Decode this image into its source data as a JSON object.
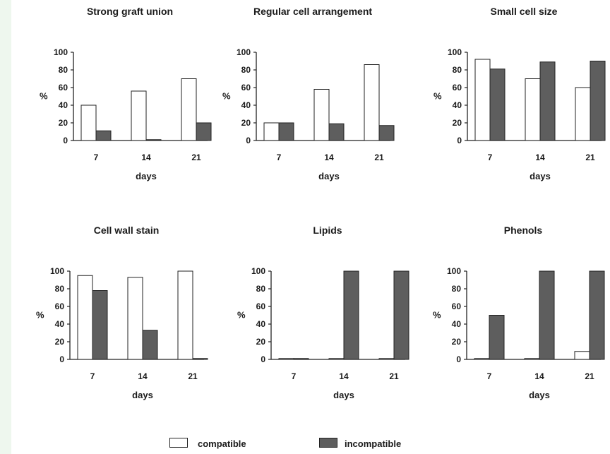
{
  "colors": {
    "compatible": "#ffffff",
    "incompatible": "#5e5e5e",
    "stroke": "#222222"
  },
  "legend": {
    "compatible": "compatible",
    "incompatible": "incompatible"
  },
  "chart_data": [
    {
      "type": "bar",
      "title": "Strong graft union",
      "categories": [
        "7",
        "14",
        "21"
      ],
      "series": [
        {
          "name": "compatible",
          "values": [
            40,
            56,
            70
          ]
        },
        {
          "name": "incompatible",
          "values": [
            11,
            1,
            20
          ]
        }
      ],
      "xlabel": "days",
      "ylabel": "%",
      "ylim": [
        0,
        100
      ],
      "yticks": [
        0,
        20,
        40,
        60,
        80,
        100
      ],
      "grid": false,
      "legend": "bottom"
    },
    {
      "type": "bar",
      "title": "Regular cell arrangement",
      "categories": [
        "7",
        "14",
        "21"
      ],
      "series": [
        {
          "name": "compatible",
          "values": [
            20,
            58,
            86
          ]
        },
        {
          "name": "incompatible",
          "values": [
            20,
            19,
            17
          ]
        }
      ],
      "xlabel": "days",
      "ylabel": "%",
      "ylim": [
        0,
        100
      ],
      "yticks": [
        0,
        20,
        40,
        60,
        80,
        100
      ],
      "grid": false,
      "legend": "bottom"
    },
    {
      "type": "bar",
      "title": "Small cell size",
      "categories": [
        "7",
        "14",
        "21"
      ],
      "series": [
        {
          "name": "compatible",
          "values": [
            92,
            70,
            60
          ]
        },
        {
          "name": "incompatible",
          "values": [
            81,
            89,
            90
          ]
        }
      ],
      "xlabel": "days",
      "ylabel": "%",
      "ylim": [
        0,
        100
      ],
      "yticks": [
        0,
        20,
        40,
        60,
        80,
        100
      ],
      "grid": false,
      "legend": "bottom"
    },
    {
      "type": "bar",
      "title": "Cell wall stain",
      "categories": [
        "7",
        "14",
        "21"
      ],
      "series": [
        {
          "name": "compatible",
          "values": [
            95,
            93,
            100
          ]
        },
        {
          "name": "incompatible",
          "values": [
            78,
            33,
            1
          ]
        }
      ],
      "xlabel": "days",
      "ylabel": "%",
      "ylim": [
        0,
        100
      ],
      "yticks": [
        0,
        20,
        40,
        60,
        80,
        100
      ],
      "grid": false,
      "legend": "bottom"
    },
    {
      "type": "bar",
      "title": "Lipids",
      "categories": [
        "7",
        "14",
        "21"
      ],
      "series": [
        {
          "name": "compatible",
          "values": [
            1,
            1,
            1
          ]
        },
        {
          "name": "incompatible",
          "values": [
            1,
            100,
            100
          ]
        }
      ],
      "xlabel": "days",
      "ylabel": "%",
      "ylim": [
        0,
        100
      ],
      "yticks": [
        0,
        20,
        40,
        60,
        80,
        100
      ],
      "grid": false,
      "legend": "bottom"
    },
    {
      "type": "bar",
      "title": "Phenols",
      "categories": [
        "7",
        "14",
        "21"
      ],
      "series": [
        {
          "name": "compatible",
          "values": [
            1,
            1,
            9
          ]
        },
        {
          "name": "incompatible",
          "values": [
            50,
            100,
            100
          ]
        }
      ],
      "xlabel": "days",
      "ylabel": "%",
      "ylim": [
        0,
        100
      ],
      "yticks": [
        0,
        20,
        40,
        60,
        80,
        100
      ],
      "grid": false,
      "legend": "bottom"
    }
  ]
}
